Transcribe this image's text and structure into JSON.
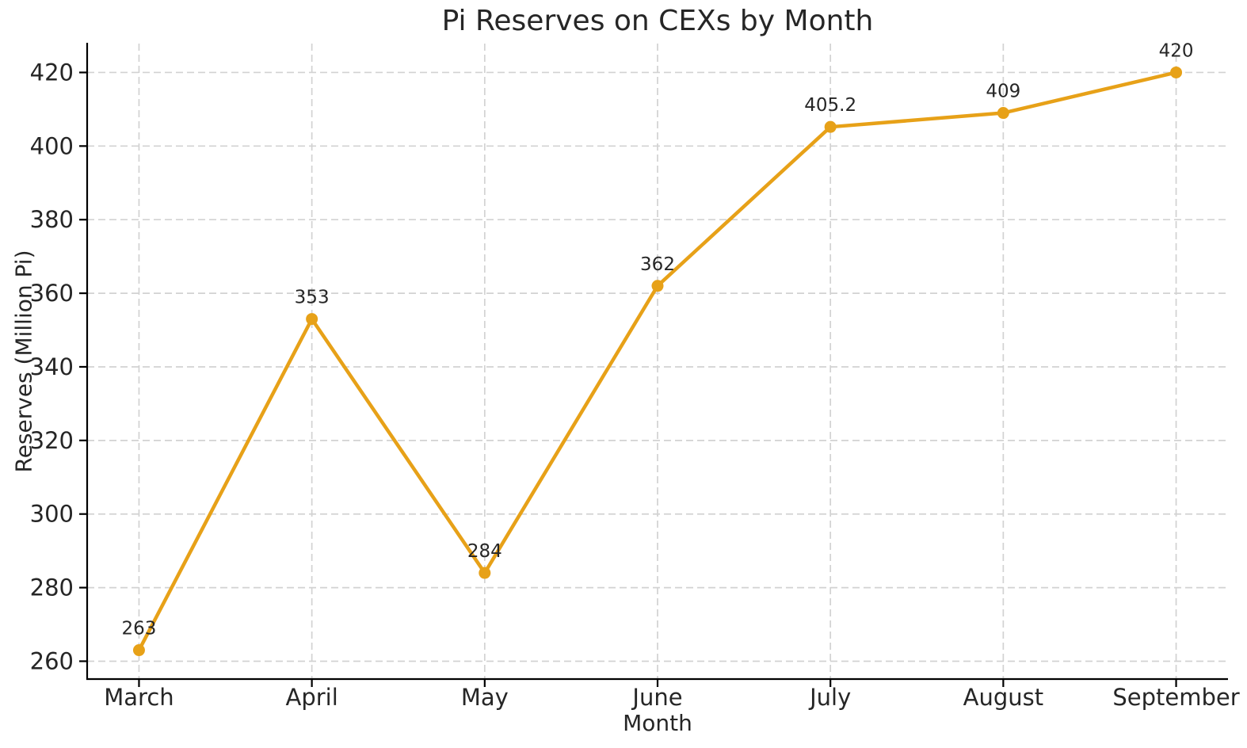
{
  "chart_data": {
    "type": "line",
    "title": "Pi Reserves on CEXs by Month",
    "xlabel": "Month",
    "ylabel": "Reserves (Million Pi)",
    "categories": [
      "March",
      "April",
      "May",
      "June",
      "July",
      "August",
      "September"
    ],
    "series": [
      {
        "name": "Pi Reserves",
        "values": [
          263,
          353,
          284,
          362,
          405.2,
          409,
          420
        ],
        "point_labels": [
          "263",
          "353",
          "284",
          "362",
          "405.2",
          "409",
          "420"
        ],
        "color": "#E7A118"
      }
    ],
    "ylim": [
      255.15,
      427.85
    ],
    "yticks": [
      260,
      280,
      300,
      320,
      340,
      360,
      380,
      400,
      420
    ],
    "grid": true,
    "grid_style": "dashed",
    "legend_position": "none",
    "colors": {
      "line": "#E7A118",
      "marker": "#E7A118",
      "grid": "#d2d2d2",
      "axis": "#000000",
      "text": "#262626",
      "background": "#ffffff"
    }
  }
}
